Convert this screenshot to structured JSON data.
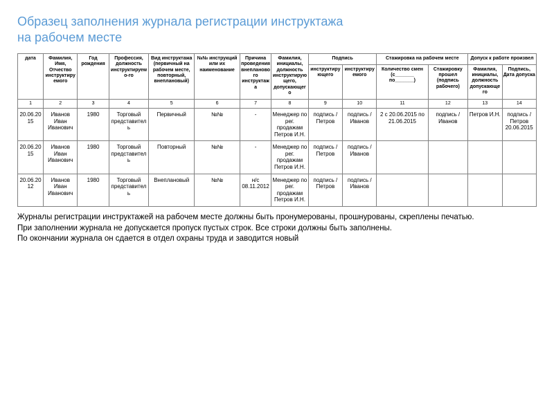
{
  "title_line1": "Образец заполнения журнала регистрации инструктажа",
  "title_line2": "на рабочем месте",
  "headers": {
    "c1": "дата",
    "c2": "Фамилия, Имя, Отчество инструктируемого",
    "c3": "Год рождения",
    "c4": "Профессия, должность инструктируемо-го",
    "c5": "Вид инструктажа (первичный на рабочем месте, повторный, внеплановый)",
    "c6": "№№ инструкций или их наименование",
    "c7": "Причина проведения внепланового инструктажа",
    "c8": "Фамилия, инициалы, должность инструктирующего, допускающего",
    "g_podpis": "Подпись",
    "c9": "инструктирующего",
    "c10": "инструктируемого",
    "g_stazh": "Стажировка на рабочем месте",
    "c11": "Количество смен (с_______ по_______)",
    "c12": "Стажировку прошел (подпись рабочего)",
    "g_dopusk": "Допуск к работе произвел",
    "c13": "Фамилия, инициалы, должность допускающего",
    "c14": "Подпись, Дата допуска"
  },
  "nums": {
    "n1": "1",
    "n2": "2",
    "n3": "3",
    "n4": "4",
    "n5": "5",
    "n6": "6",
    "n7": "7",
    "n8": "8",
    "n9": "9",
    "n10": "10",
    "n11": "11",
    "n12": "12",
    "n13": "13",
    "n14": "14"
  },
  "rows": [
    {
      "c1": "20.06.2015",
      "c2": "Иванов Иван Иванович",
      "c3": "1980",
      "c4": "Торговый представитель",
      "c5": "Первичный",
      "c6": "№№",
      "c7": "-",
      "c8": "Менеджер по рег. продажам Петров И.Н.",
      "c9": "подпись / Петров",
      "c10": "подпись /Иванов",
      "c11": "2 с 20.06.2015 по 21.06.2015",
      "c12": "подпись /Иванов",
      "c13": "Петров И.Н.",
      "c14": "подпись /Петров 20.06.2015"
    },
    {
      "c1": "20.06.2015",
      "c2": "Иванов Иван Иванович",
      "c3": "1980",
      "c4": "Торговый представитель",
      "c5": "Повторный",
      "c6": "№№",
      "c7": "-",
      "c8": "Менеджер по рег. продажам Петров И.Н.",
      "c9": "подпись / Петров",
      "c10": "подпись /Иванов",
      "c11": "",
      "c12": "",
      "c13": "",
      "c14": ""
    },
    {
      "c1": "20.06.2012",
      "c2": "Иванов Иван Иванович",
      "c3": "1980",
      "c4": "Торговый представитель",
      "c5": "Внеплановый",
      "c6": "№№",
      "c7": "н/с 08.11.2012",
      "c8": "Менеджер по рег. продажам Петров И.Н.",
      "c9": "подпись / Петров",
      "c10": "подпись /Иванов",
      "c11": "",
      "c12": "",
      "c13": "",
      "c14": ""
    }
  ],
  "notes": {
    "l1": "Журналы регистрации инструктажей на рабочем месте должны быть пронумерованы, прошнурованы, скреплены печатью.",
    "l2": "При заполнении журнала не допускается пропуск пустых строк. Все строки должны быть заполнены.",
    "l3": "По окончании журнала он сдается в отдел охраны труда и заводится новый"
  }
}
